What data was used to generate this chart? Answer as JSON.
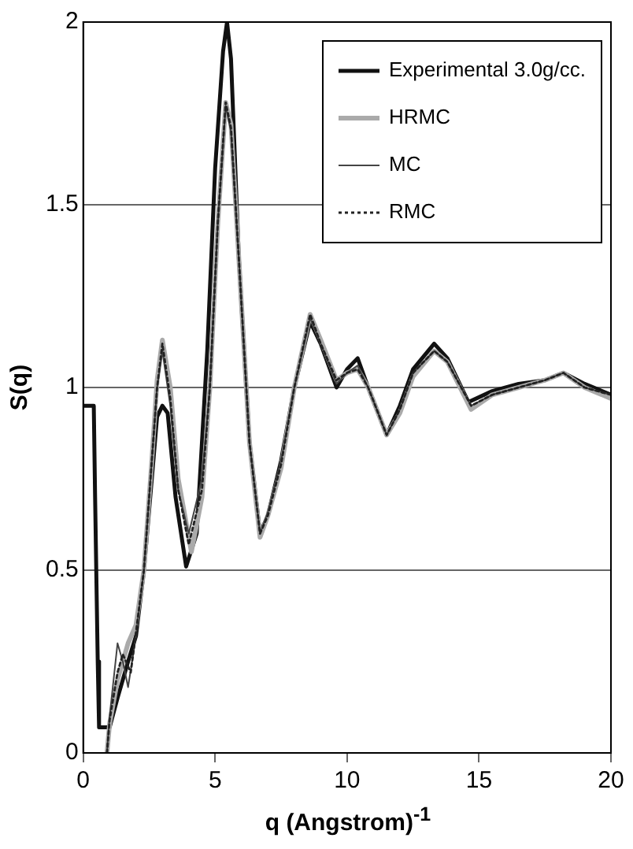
{
  "chart_data": {
    "type": "line",
    "xlabel": "q (Angstrom)$^{-1}$",
    "ylabel": "S(q)",
    "xlim": [
      0,
      20
    ],
    "xticks": [
      0,
      5,
      10,
      15,
      20
    ],
    "ylim": [
      0,
      2
    ],
    "yticks": [
      0,
      0.5,
      1,
      1.5,
      2
    ],
    "grid": "y",
    "legend": "top right",
    "marker": "none",
    "series": [
      {
        "name": "Experimental 3.0g/cc.",
        "color": "#111111",
        "line_style": "solid",
        "x": [
          0,
          0.4,
          0.45,
          0.55,
          0.6,
          0.8,
          1.0,
          1.3,
          1.7,
          2.0,
          2.3,
          2.6,
          2.8,
          3.0,
          3.2,
          3.5,
          3.9,
          4.3,
          4.7,
          5.0,
          5.3,
          5.45,
          5.6,
          5.9,
          6.3,
          6.7,
          7.0,
          7.5,
          8.0,
          8.6,
          9.0,
          9.6,
          10.0,
          10.4,
          10.8,
          11.5,
          12.0,
          12.5,
          13.3,
          13.8,
          14.6,
          15.5,
          16.5,
          17.5,
          18.2,
          19.0,
          20
        ],
        "values": [
          0.95,
          0.95,
          0.7,
          0.25,
          0.07,
          0.07,
          0.07,
          0.15,
          0.25,
          0.32,
          0.5,
          0.75,
          0.92,
          0.95,
          0.93,
          0.7,
          0.51,
          0.6,
          1.1,
          1.6,
          1.92,
          2.0,
          1.9,
          1.35,
          0.85,
          0.6,
          0.65,
          0.8,
          1.0,
          1.18,
          1.12,
          1.0,
          1.05,
          1.08,
          1.0,
          0.87,
          0.95,
          1.05,
          1.12,
          1.08,
          0.96,
          0.99,
          1.01,
          1.02,
          1.04,
          1.01,
          0.98
        ]
      },
      {
        "name": "HRMC",
        "color": "#aaaaaa",
        "line_style": "solid",
        "x": [
          0.9,
          1.0,
          1.3,
          1.7,
          2.0,
          2.3,
          2.6,
          2.8,
          3.0,
          3.3,
          3.6,
          4.1,
          4.5,
          4.8,
          5.1,
          5.4,
          5.6,
          5.9,
          6.3,
          6.7,
          7.0,
          7.5,
          8.0,
          8.6,
          9.0,
          9.6,
          10.0,
          10.4,
          10.8,
          11.5,
          12.0,
          12.5,
          13.3,
          13.8,
          14.7,
          15.5,
          16.5,
          17.5,
          18.2,
          19.0,
          20
        ],
        "values": [
          0,
          0.08,
          0.2,
          0.3,
          0.35,
          0.5,
          0.8,
          1.02,
          1.13,
          1.0,
          0.75,
          0.55,
          0.7,
          1.0,
          1.45,
          1.78,
          1.72,
          1.35,
          0.85,
          0.59,
          0.65,
          0.78,
          1.0,
          1.2,
          1.13,
          1.02,
          1.04,
          1.05,
          1.0,
          0.87,
          0.93,
          1.03,
          1.1,
          1.07,
          0.94,
          0.98,
          1.0,
          1.02,
          1.04,
          1.0,
          0.97
        ]
      },
      {
        "name": "MC",
        "color": "#444444",
        "line_style": "solid",
        "x": [
          0.9,
          1.0,
          1.3,
          1.5,
          1.7,
          2.0,
          2.3,
          2.6,
          2.8,
          3.0,
          3.3,
          3.6,
          4.0,
          4.5,
          4.8,
          5.1,
          5.4,
          5.6,
          5.9,
          6.3,
          6.7,
          7.0,
          7.5,
          8.0,
          8.6,
          9.0,
          9.6,
          10.0,
          10.4,
          10.8,
          11.5,
          12.0,
          12.5,
          13.3,
          13.8,
          14.7,
          15.5,
          16.5,
          17.5,
          18.2,
          19.0,
          20
        ],
        "values": [
          0,
          0.1,
          0.3,
          0.25,
          0.18,
          0.32,
          0.5,
          0.8,
          1.0,
          1.1,
          0.95,
          0.72,
          0.6,
          0.75,
          1.0,
          1.45,
          1.77,
          1.7,
          1.35,
          0.85,
          0.6,
          0.66,
          0.8,
          1.0,
          1.19,
          1.12,
          1.01,
          1.04,
          1.06,
          1.0,
          0.87,
          0.94,
          1.04,
          1.1,
          1.07,
          0.95,
          0.98,
          1.0,
          1.02,
          1.04,
          1.0,
          0.98
        ]
      },
      {
        "name": "RMC",
        "color": "#222222",
        "line_style": "dotted",
        "x": [
          0.9,
          1.0,
          1.3,
          1.5,
          1.8,
          2.0,
          2.3,
          2.6,
          2.8,
          3.0,
          3.3,
          3.6,
          4.0,
          4.5,
          4.8,
          5.1,
          5.4,
          5.6,
          5.9,
          6.3,
          6.7,
          7.0,
          7.5,
          8.0,
          8.6,
          9.0,
          9.6,
          10.0,
          10.4,
          10.8,
          11.5,
          12.0,
          12.5,
          13.3,
          13.8,
          14.7,
          15.5,
          16.5,
          17.5,
          18.2,
          19.0,
          20
        ],
        "values": [
          0,
          0.09,
          0.22,
          0.27,
          0.22,
          0.33,
          0.5,
          0.8,
          1.0,
          1.12,
          0.97,
          0.72,
          0.57,
          0.72,
          1.0,
          1.45,
          1.78,
          1.71,
          1.35,
          0.85,
          0.6,
          0.65,
          0.79,
          1.0,
          1.2,
          1.12,
          1.02,
          1.04,
          1.05,
          1.0,
          0.87,
          0.94,
          1.04,
          1.1,
          1.07,
          0.95,
          0.98,
          1.0,
          1.02,
          1.04,
          1.0,
          0.98
        ]
      }
    ]
  }
}
